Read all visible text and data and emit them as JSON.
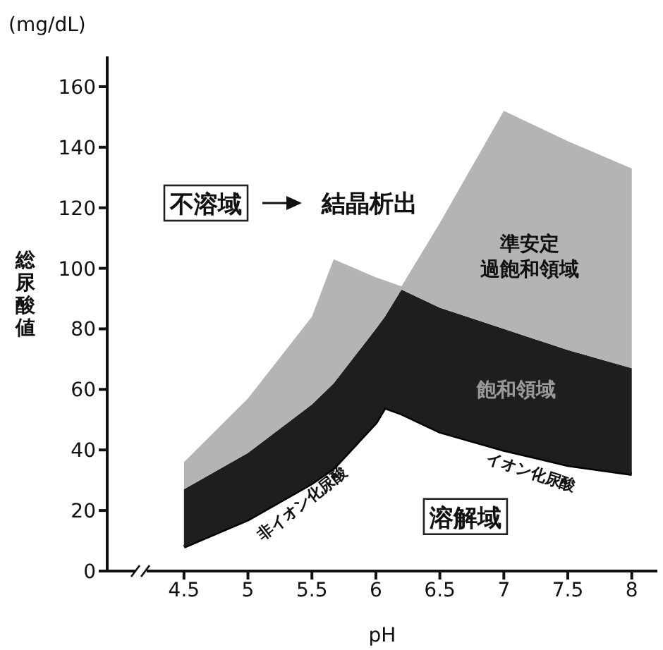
{
  "chart_data": {
    "type": "area",
    "stacked": true,
    "xlabel": "pH",
    "ylabel": "総尿酸値",
    "x": [
      4.5,
      5,
      5.5,
      5.67,
      6,
      6.07,
      6.2,
      6.5,
      7,
      7.5,
      8
    ],
    "series": [
      {
        "name": "溶解域",
        "color": "#ffffff",
        "values": [
          8,
          17,
          29,
          34,
          49,
          54,
          52,
          46,
          40,
          35,
          32
        ]
      },
      {
        "name": "飽和領域",
        "color": "#1e1e1e",
        "values": [
          19,
          22,
          26,
          28,
          31,
          30,
          41,
          41,
          40,
          38,
          35
        ]
      },
      {
        "name": "準安定過飽和領域",
        "color": "#b4b4b4",
        "values": [
          9,
          18,
          29,
          41,
          17,
          12,
          1,
          28,
          72,
          69,
          66
        ]
      }
    ],
    "xlim": [
      3.9,
      8.2
    ],
    "xticks": [
      4.5,
      5,
      5.5,
      6,
      6.5,
      7,
      7.5,
      8
    ],
    "ylim": [
      0,
      170
    ],
    "yticks": [
      0,
      20,
      40,
      60,
      80,
      100,
      120,
      140,
      160
    ],
    "annotations": [
      "(mg/dL)",
      "不溶域",
      "結晶析出",
      "非イオン化尿酸",
      "イオン化尿酸"
    ]
  }
}
